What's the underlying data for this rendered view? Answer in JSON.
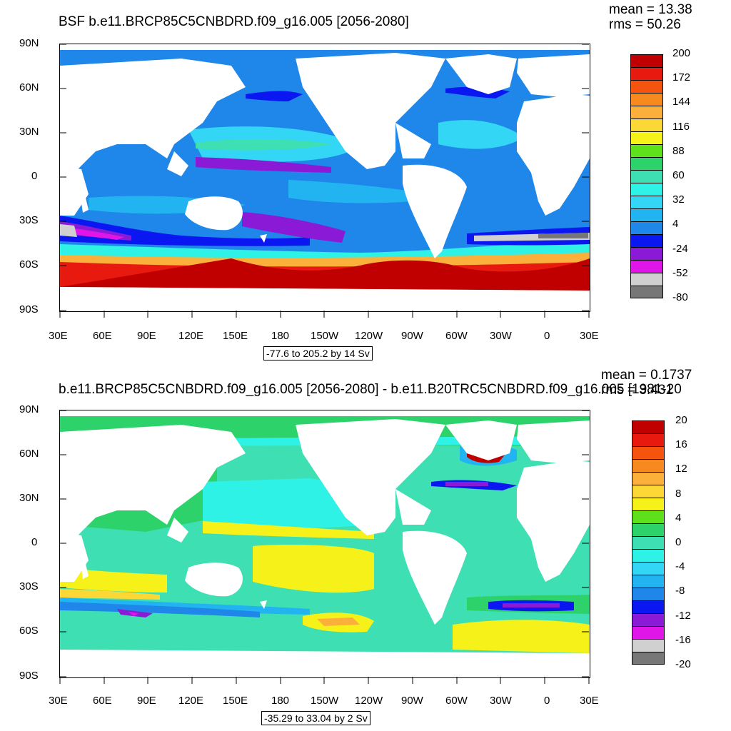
{
  "panels": [
    {
      "title": "BSF b.e11.BRCP85C5CNBDRD.f09_g16.005 [2056-2080]",
      "mean": "mean = 13.38",
      "rms": "rms = 50.26",
      "range": "-77.6 to 205.2 by 14 Sv",
      "lat_labels": [
        "90N",
        "60N",
        "30N",
        "0",
        "30S",
        "60S",
        "90S"
      ],
      "lon_labels": [
        "30E",
        "60E",
        "90E",
        "120E",
        "150E",
        "180",
        "150W",
        "120W",
        "90W",
        "60W",
        "30W",
        "0",
        "30E"
      ],
      "colorbar": {
        "labels": [
          "200",
          "172",
          "144",
          "116",
          "88",
          "60",
          "32",
          "4",
          "-24",
          "-52",
          "-80"
        ],
        "colors": [
          "#c00000",
          "#e81a0f",
          "#f5540e",
          "#f78a1f",
          "#fbb03b",
          "#fcd836",
          "#f7f11a",
          "#5ee01a",
          "#2dd36a",
          "#3ee0b3",
          "#2ff2e6",
          "#33d6f5",
          "#22b4f0",
          "#1f86ea",
          "#0a17f0",
          "#8a1ad6",
          "#e015e8",
          "#d0d0d0",
          "#777777"
        ]
      }
    },
    {
      "title": "b.e11.BRCP85C5CNBDRD.f09_g16.005 [2056-2080] - b.e11.B20TRC5CNBDRD.f09_g16.005 [1981-20",
      "mean": "mean = 0.1737",
      "rms": "rms = 3.431",
      "range": "-35.29 to 33.04 by 2 Sv",
      "lat_labels": [
        "90N",
        "60N",
        "30N",
        "0",
        "30S",
        "60S",
        "90S"
      ],
      "lon_labels": [
        "30E",
        "60E",
        "90E",
        "120E",
        "150E",
        "180",
        "150W",
        "120W",
        "90W",
        "60W",
        "30W",
        "0",
        "30E"
      ],
      "colorbar": {
        "labels": [
          "20",
          "16",
          "12",
          "8",
          "4",
          "0",
          "-4",
          "-8",
          "-12",
          "-16",
          "-20"
        ],
        "colors": [
          "#c00000",
          "#e81a0f",
          "#f5540e",
          "#f78a1f",
          "#fbb03b",
          "#fcd836",
          "#f7f11a",
          "#5ee01a",
          "#2dd36a",
          "#3ee0b3",
          "#2ff2e6",
          "#33d6f5",
          "#22b4f0",
          "#1f86ea",
          "#0a17f0",
          "#8a1ad6",
          "#e015e8",
          "#d0d0d0",
          "#777777"
        ]
      }
    }
  ]
}
